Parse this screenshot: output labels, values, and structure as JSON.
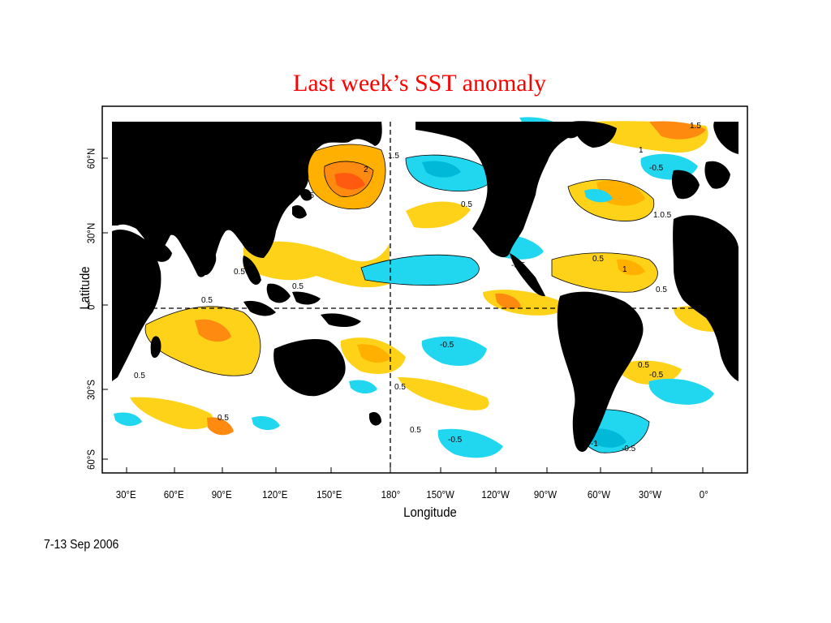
{
  "title": "Last week’s SST anomaly",
  "date_range": "7-13 Sep 2006",
  "x_axis": {
    "title": "Longitude",
    "ticks": [
      "30°E",
      "60°E",
      "90°E",
      "120°E",
      "150°E",
      "180°",
      "150°W",
      "120°W",
      "90°W",
      "60°W",
      "30°W",
      "0°"
    ]
  },
  "y_axis": {
    "title": "Latitude",
    "ticks": [
      "60°N",
      "30°N",
      "0°",
      "30°S",
      "60°S"
    ]
  },
  "contour_labels": [
    "0.5",
    "1",
    "1.5",
    "2",
    "-0.5",
    "-1"
  ],
  "colors": {
    "land": "#000000",
    "ocean": "#ffffff",
    "positive_0_5": "#ffd21a",
    "positive_1": "#ffb000",
    "positive_1_5": "#ff8a10",
    "positive_2": "#ff5a10",
    "negative_0_5": "#21d7f0",
    "negative_1": "#00b8d8",
    "reference_lines": "#000000",
    "title": "#ff0000"
  },
  "reference_lines": [
    "equator",
    "180° meridian"
  ],
  "legend": "none"
}
